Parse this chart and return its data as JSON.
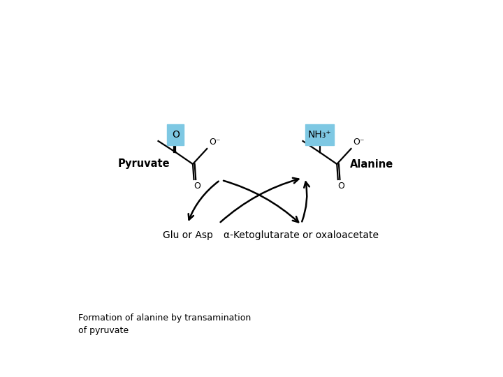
{
  "bg_color": "#ffffff",
  "light_blue_box": "#7ec8e3",
  "text_color": "#000000",
  "caption_line1": "Formation of alanine by transamination",
  "caption_line2": "of pyruvate",
  "pyruvate_label": "Pyruvate",
  "alanine_label": "Alanine",
  "glu_label": "Glu or Asp",
  "keto_label": "α-Ketoglutarate or oxaloacetate",
  "o_box_text": "O",
  "nh3_box_text": "NH₃⁺",
  "o_minus_text": "O⁻",
  "o_bottom_text": "O",
  "figw": 7.2,
  "figh": 5.4,
  "dpi": 100
}
